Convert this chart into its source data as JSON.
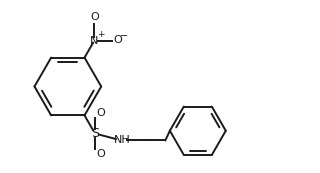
{
  "bg_color": "#ffffff",
  "line_color": "#1a1a1a",
  "line_width": 1.4,
  "figsize": [
    3.2,
    1.73
  ],
  "dpi": 100,
  "xlim": [
    0,
    10
  ],
  "ylim": [
    0,
    5.4
  ]
}
